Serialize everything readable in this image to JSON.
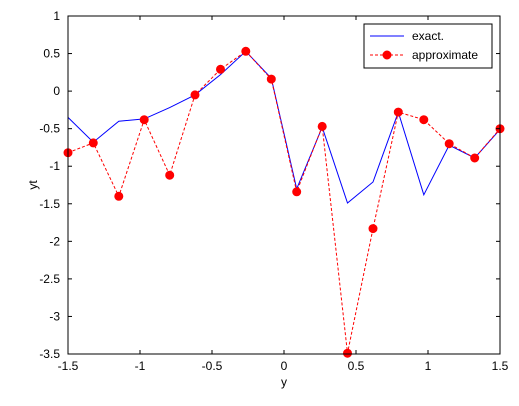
{
  "chart_data": {
    "type": "line",
    "xlabel": "y",
    "ylabel": "yt",
    "xlim": [
      -1.5,
      1.5
    ],
    "ylim": [
      -3.5,
      1
    ],
    "xticks": [
      -1.5,
      -1,
      -0.5,
      0,
      0.5,
      1,
      1.5
    ],
    "xtick_labels": [
      "-1.5",
      "-1",
      "-0.5",
      "0",
      "0.5",
      "1",
      "1.5"
    ],
    "yticks": [
      -3.5,
      -3,
      -2.5,
      -2,
      -1.5,
      -1,
      -0.5,
      0,
      0.5,
      1
    ],
    "ytick_labels": [
      "-3.5",
      "-3",
      "-2.5",
      "-2",
      "-1.5",
      "-1",
      "-0.5",
      "0",
      "0.5",
      "1"
    ],
    "grid": false,
    "legend_position": "top-right",
    "series": [
      {
        "name": "exact.",
        "color": "#0000ff",
        "line_style": "solid",
        "marker": "none",
        "x": [
          -1.5,
          -1.324,
          -1.147,
          -0.971,
          -0.794,
          -0.618,
          -0.441,
          -0.265,
          -0.088,
          0.088,
          0.265,
          0.441,
          0.618,
          0.794,
          0.971,
          1.147,
          1.324,
          1.5
        ],
        "y": [
          -0.35,
          -0.68,
          -0.4,
          -0.37,
          -0.22,
          -0.05,
          0.22,
          0.53,
          0.17,
          -1.3,
          -0.48,
          -1.49,
          -1.21,
          -0.28,
          -1.38,
          -0.72,
          -0.89,
          -0.51
        ]
      },
      {
        "name": "approximate",
        "color": "#ff0000",
        "line_style": "dashed",
        "marker": "circle",
        "x": [
          -1.5,
          -1.324,
          -1.147,
          -0.971,
          -0.794,
          -0.618,
          -0.441,
          -0.265,
          -0.088,
          0.088,
          0.265,
          0.441,
          0.618,
          0.794,
          0.971,
          1.147,
          1.324,
          1.5
        ],
        "y": [
          -0.82,
          -0.69,
          -1.4,
          -0.38,
          -1.12,
          -0.05,
          0.29,
          0.53,
          0.16,
          -1.34,
          -0.47,
          -3.49,
          -1.83,
          -0.28,
          -0.38,
          -0.7,
          -0.89,
          -0.5
        ]
      }
    ]
  }
}
